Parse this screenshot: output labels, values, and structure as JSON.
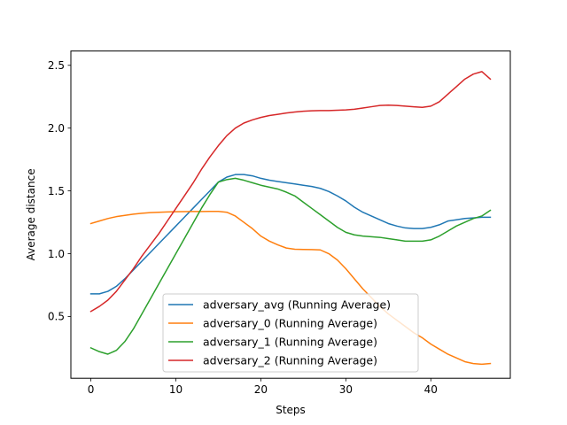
{
  "chart_data": {
    "type": "line",
    "title": "",
    "xlabel": "Steps",
    "ylabel": "Average distance",
    "xlim": [
      -2.35,
      49.35
    ],
    "ylim": [
      0.008,
      2.614
    ],
    "xticks": [
      0,
      10,
      20,
      30,
      40
    ],
    "xtick_labels": [
      "0",
      "10",
      "20",
      "30",
      "40"
    ],
    "yticks": [
      0.5,
      1.0,
      1.5,
      2.0,
      2.5
    ],
    "ytick_labels": [
      "0.5",
      "1.0",
      "1.5",
      "2.0",
      "2.5"
    ],
    "grid": false,
    "legend_placement": "lower center",
    "x": [
      0,
      1,
      2,
      3,
      4,
      5,
      6,
      7,
      8,
      9,
      10,
      11,
      12,
      13,
      14,
      15,
      16,
      17,
      18,
      19,
      20,
      21,
      22,
      23,
      24,
      25,
      26,
      27,
      28,
      29,
      30,
      31,
      32,
      33,
      34,
      35,
      36,
      37,
      38,
      39,
      40,
      41,
      42,
      43,
      44,
      45,
      46,
      47
    ],
    "series": [
      {
        "name": "adversary_avg (Running Average)",
        "color": "#1f77b4",
        "values": [
          0.68,
          0.68,
          0.7,
          0.74,
          0.8,
          0.87,
          0.94,
          1.01,
          1.08,
          1.15,
          1.22,
          1.29,
          1.36,
          1.43,
          1.5,
          1.57,
          1.61,
          1.63,
          1.63,
          1.62,
          1.6,
          1.585,
          1.575,
          1.565,
          1.555,
          1.545,
          1.535,
          1.52,
          1.495,
          1.46,
          1.42,
          1.37,
          1.33,
          1.3,
          1.27,
          1.24,
          1.22,
          1.205,
          1.2,
          1.2,
          1.21,
          1.23,
          1.26,
          1.27,
          1.28,
          1.285,
          1.29,
          1.29
        ]
      },
      {
        "name": "adversary_0 (Running Average)",
        "color": "#ff7f0e",
        "values": [
          1.24,
          1.26,
          1.28,
          1.295,
          1.305,
          1.315,
          1.322,
          1.327,
          1.33,
          1.332,
          1.334,
          1.335,
          1.336,
          1.336,
          1.337,
          1.337,
          1.33,
          1.3,
          1.25,
          1.2,
          1.14,
          1.1,
          1.07,
          1.045,
          1.035,
          1.034,
          1.033,
          1.03,
          1.0,
          0.95,
          0.88,
          0.8,
          0.72,
          0.65,
          0.58,
          0.52,
          0.47,
          0.42,
          0.37,
          0.33,
          0.28,
          0.24,
          0.2,
          0.17,
          0.14,
          0.125,
          0.12,
          0.125
        ]
      },
      {
        "name": "adversary_1 (Running Average)",
        "color": "#2ca02c",
        "values": [
          0.25,
          0.22,
          0.2,
          0.23,
          0.3,
          0.4,
          0.52,
          0.64,
          0.76,
          0.88,
          1.0,
          1.12,
          1.24,
          1.36,
          1.47,
          1.57,
          1.59,
          1.6,
          1.585,
          1.565,
          1.545,
          1.53,
          1.515,
          1.49,
          1.46,
          1.41,
          1.36,
          1.31,
          1.26,
          1.21,
          1.17,
          1.15,
          1.14,
          1.135,
          1.13,
          1.12,
          1.11,
          1.1,
          1.1,
          1.1,
          1.11,
          1.14,
          1.18,
          1.22,
          1.25,
          1.28,
          1.3,
          1.345
        ]
      },
      {
        "name": "adversary_2 (Running Average)",
        "color": "#d62728",
        "values": [
          0.54,
          0.58,
          0.63,
          0.7,
          0.79,
          0.88,
          0.98,
          1.07,
          1.16,
          1.26,
          1.36,
          1.46,
          1.56,
          1.67,
          1.77,
          1.86,
          1.94,
          2.0,
          2.04,
          2.065,
          2.085,
          2.1,
          2.11,
          2.12,
          2.128,
          2.134,
          2.138,
          2.14,
          2.14,
          2.142,
          2.145,
          2.15,
          2.16,
          2.17,
          2.18,
          2.183,
          2.18,
          2.175,
          2.17,
          2.165,
          2.175,
          2.21,
          2.27,
          2.33,
          2.39,
          2.43,
          2.45,
          2.39
        ]
      }
    ]
  }
}
